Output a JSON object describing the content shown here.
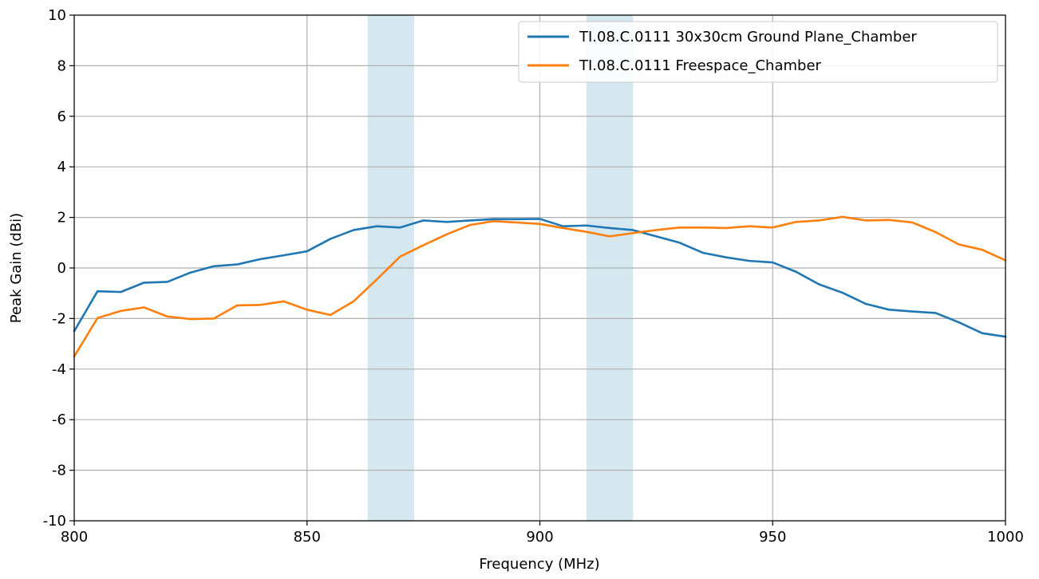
{
  "chart_data": {
    "type": "line",
    "xlabel": "Frequency (MHz)",
    "ylabel": "Peak Gain (dBi)",
    "xlim": [
      800,
      1000
    ],
    "ylim": [
      -10,
      10
    ],
    "x_ticks": [
      800,
      850,
      900,
      950,
      1000
    ],
    "y_ticks": [
      -10,
      -8,
      -6,
      -4,
      -2,
      0,
      2,
      4,
      6,
      8,
      10
    ],
    "grid": true,
    "legend_position": "top-right",
    "shaded_bands": [
      {
        "from": 863,
        "to": 873,
        "color": "#d5e8ef"
      },
      {
        "from": 910,
        "to": 920,
        "color": "#d5e8ef"
      }
    ],
    "x": [
      800,
      805,
      810,
      815,
      820,
      825,
      830,
      835,
      840,
      845,
      850,
      855,
      860,
      865,
      870,
      875,
      880,
      885,
      890,
      895,
      900,
      905,
      910,
      915,
      920,
      925,
      930,
      935,
      940,
      945,
      950,
      955,
      960,
      965,
      970,
      975,
      980,
      985,
      990,
      995,
      1000
    ],
    "series": [
      {
        "name": "TI.08.C.0111 30x30cm Ground Plane_Chamber",
        "color": "#1f77b4",
        "values": [
          -2.5,
          -0.92,
          -0.95,
          -0.58,
          -0.55,
          -0.18,
          0.07,
          0.14,
          0.35,
          0.5,
          0.66,
          1.15,
          1.5,
          1.65,
          1.6,
          1.88,
          1.82,
          1.88,
          1.93,
          1.93,
          1.94,
          1.65,
          1.68,
          1.58,
          1.5,
          1.25,
          1.0,
          0.6,
          0.42,
          0.28,
          0.22,
          -0.15,
          -0.65,
          -0.98,
          -1.42,
          -1.65,
          -1.72,
          -1.78,
          -2.15,
          -2.58,
          -2.72
        ]
      },
      {
        "name": "TI.08.C.0111 Freespace_Chamber",
        "color": "#ff7f0e",
        "values": [
          -3.5,
          -1.98,
          -1.7,
          -1.56,
          -1.92,
          -2.02,
          -2.0,
          -1.48,
          -1.46,
          -1.32,
          -1.65,
          -1.86,
          -1.32,
          -0.45,
          0.45,
          0.9,
          1.33,
          1.7,
          1.85,
          1.8,
          1.74,
          1.58,
          1.43,
          1.25,
          1.38,
          1.5,
          1.6,
          1.6,
          1.58,
          1.65,
          1.6,
          1.82,
          1.88,
          2.02,
          1.88,
          1.9,
          1.8,
          1.42,
          0.93,
          0.72,
          0.3
        ]
      }
    ]
  }
}
